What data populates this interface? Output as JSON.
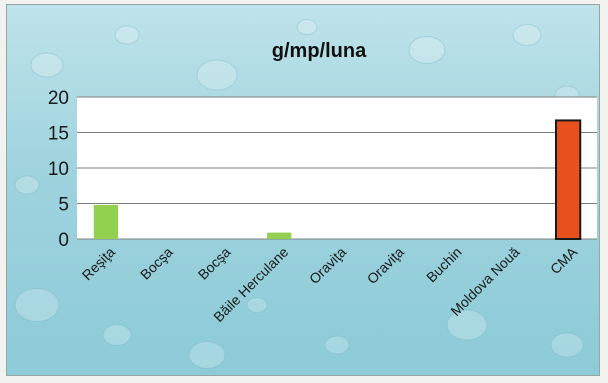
{
  "chart_data": {
    "type": "bar",
    "title": "g/mp/luna",
    "categories": [
      "Reşiţa",
      "Bocşa",
      "Bocşa",
      "Băile Herculane",
      "Oraviţa",
      "Oraviţa",
      "Buchin",
      "Moldova Nouă",
      "CMA"
    ],
    "values": [
      4.8,
      0,
      0,
      0.9,
      0,
      0,
      0,
      0,
      16.7
    ],
    "ylim": [
      0,
      20
    ],
    "yticks": [
      0,
      5,
      10,
      15,
      20
    ],
    "grid": true,
    "legend": "none",
    "colors": {
      "bar": "#92d050",
      "highlight_bar": "#e8501e",
      "highlight_border": "#1a1a1a",
      "plot_background": "#ffffff",
      "gridline": "#7f7f7f"
    },
    "highlight_index": 8
  }
}
